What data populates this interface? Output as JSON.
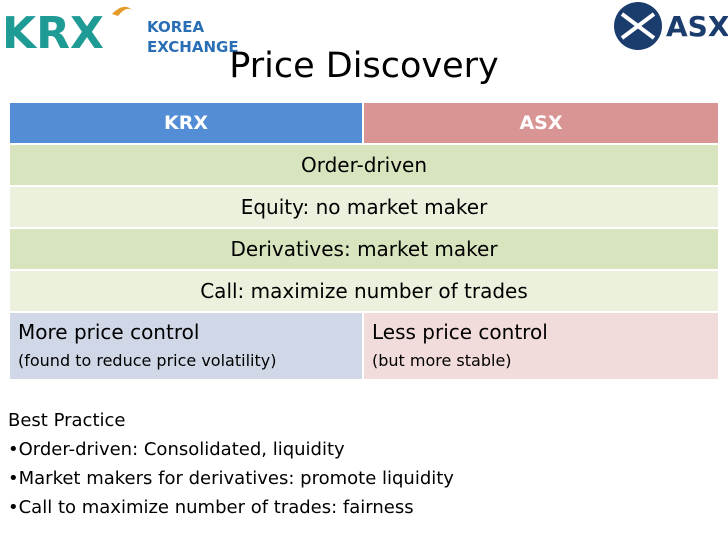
{
  "logos": {
    "krx": {
      "mark": "KRX",
      "name": [
        "KOREA",
        "EXCHANGE"
      ]
    },
    "asx": "ASX"
  },
  "title": "Price Discovery",
  "table": {
    "header": [
      "KRX",
      "ASX"
    ],
    "shared_rows": [
      "Order-driven",
      "Equity: no market maker",
      "Derivatives: market maker",
      "Call: maximize number of trades"
    ],
    "split_row": [
      {
        "main": "More price control",
        "note": "(found to reduce price volatility)"
      },
      {
        "main": "Less price control",
        "note": "(but more stable)"
      }
    ]
  },
  "best_practice": {
    "heading": "Best Practice",
    "items": [
      "•Order-driven: Consolidated, liquidity",
      "•Market makers for derivatives: promote liquidity",
      "•Call to maximize number of trades: fairness"
    ]
  }
}
